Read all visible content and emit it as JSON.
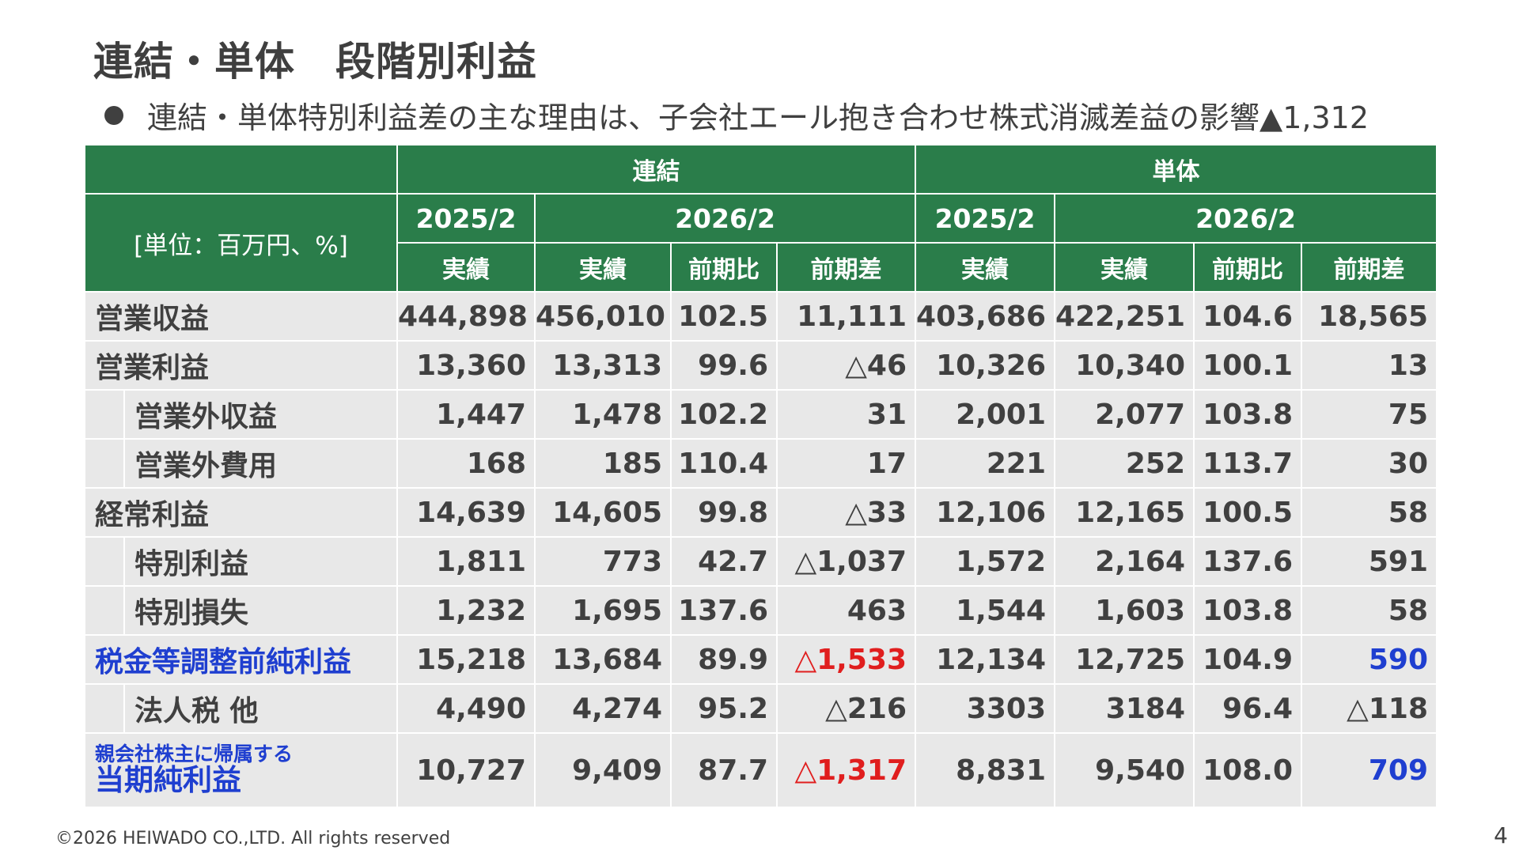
{
  "title": "連結・単体　段階別利益",
  "bullet": "連結・単体特別利益差の主な理由は、子会社エール抱き合わせ株式消滅差益の影響▲1,312",
  "table": {
    "unit_label": "[単位：百万円、%]",
    "group_consolidated": "連結",
    "group_standalone": "単体",
    "period_prev": "2025/2",
    "period_curr": "2026/2",
    "col_actual": "実績",
    "col_ratio": "前期比",
    "col_diff": "前期差",
    "rows": [
      {
        "label": "営業収益",
        "indent": false,
        "c": [
          "444,898",
          "456,010",
          "102.5",
          "11,111"
        ],
        "s": [
          "403,686",
          "422,251",
          "104.6",
          "18,565"
        ]
      },
      {
        "label": "営業利益",
        "indent": false,
        "c": [
          "13,360",
          "13,313",
          "99.6",
          "△46"
        ],
        "s": [
          "10,326",
          "10,340",
          "100.1",
          "13"
        ]
      },
      {
        "label": "営業外収益",
        "indent": true,
        "c": [
          "1,447",
          "1,478",
          "102.2",
          "31"
        ],
        "s": [
          "2,001",
          "2,077",
          "103.8",
          "75"
        ]
      },
      {
        "label": "営業外費用",
        "indent": true,
        "c": [
          "168",
          "185",
          "110.4",
          "17"
        ],
        "s": [
          "221",
          "252",
          "113.7",
          "30"
        ]
      },
      {
        "label": "経常利益",
        "indent": false,
        "c": [
          "14,639",
          "14,605",
          "99.8",
          "△33"
        ],
        "s": [
          "12,106",
          "12,165",
          "100.5",
          "58"
        ]
      },
      {
        "label": "特別利益",
        "indent": true,
        "c": [
          "1,811",
          "773",
          "42.7",
          "△1,037"
        ],
        "s": [
          "1,572",
          "2,164",
          "137.6",
          "591"
        ]
      },
      {
        "label": "特別損失",
        "indent": true,
        "c": [
          "1,232",
          "1,695",
          "137.6",
          "463"
        ],
        "s": [
          "1,544",
          "1,603",
          "103.8",
          "58"
        ]
      },
      {
        "label": "税金等調整前純利益",
        "indent": false,
        "c": [
          "15,218",
          "13,684",
          "89.9",
          "△1,533"
        ],
        "s": [
          "12,134",
          "12,725",
          "104.9",
          "590"
        ]
      },
      {
        "label": "法人税 他",
        "indent": true,
        "c": [
          "4,490",
          "4,274",
          "95.2",
          "△216"
        ],
        "s": [
          "3303",
          "3184",
          "96.4",
          "△118"
        ]
      },
      {
        "label_small": "親会社株主に帰属する",
        "label": "当期純利益",
        "indent": false,
        "c": [
          "10,727",
          "9,409",
          "87.7",
          "△1,317"
        ],
        "s": [
          "8,831",
          "9,540",
          "108.0",
          "709"
        ]
      }
    ]
  },
  "colors": {
    "header_green": "#2a7d4a",
    "row_gray": "#e8e8e8",
    "highlight_blue": "#1f3fd0",
    "negative_red": "#e01e1e"
  },
  "footer": "©2026  HEIWADO CO.,LTD.  All rights reserved",
  "page_number": "4"
}
